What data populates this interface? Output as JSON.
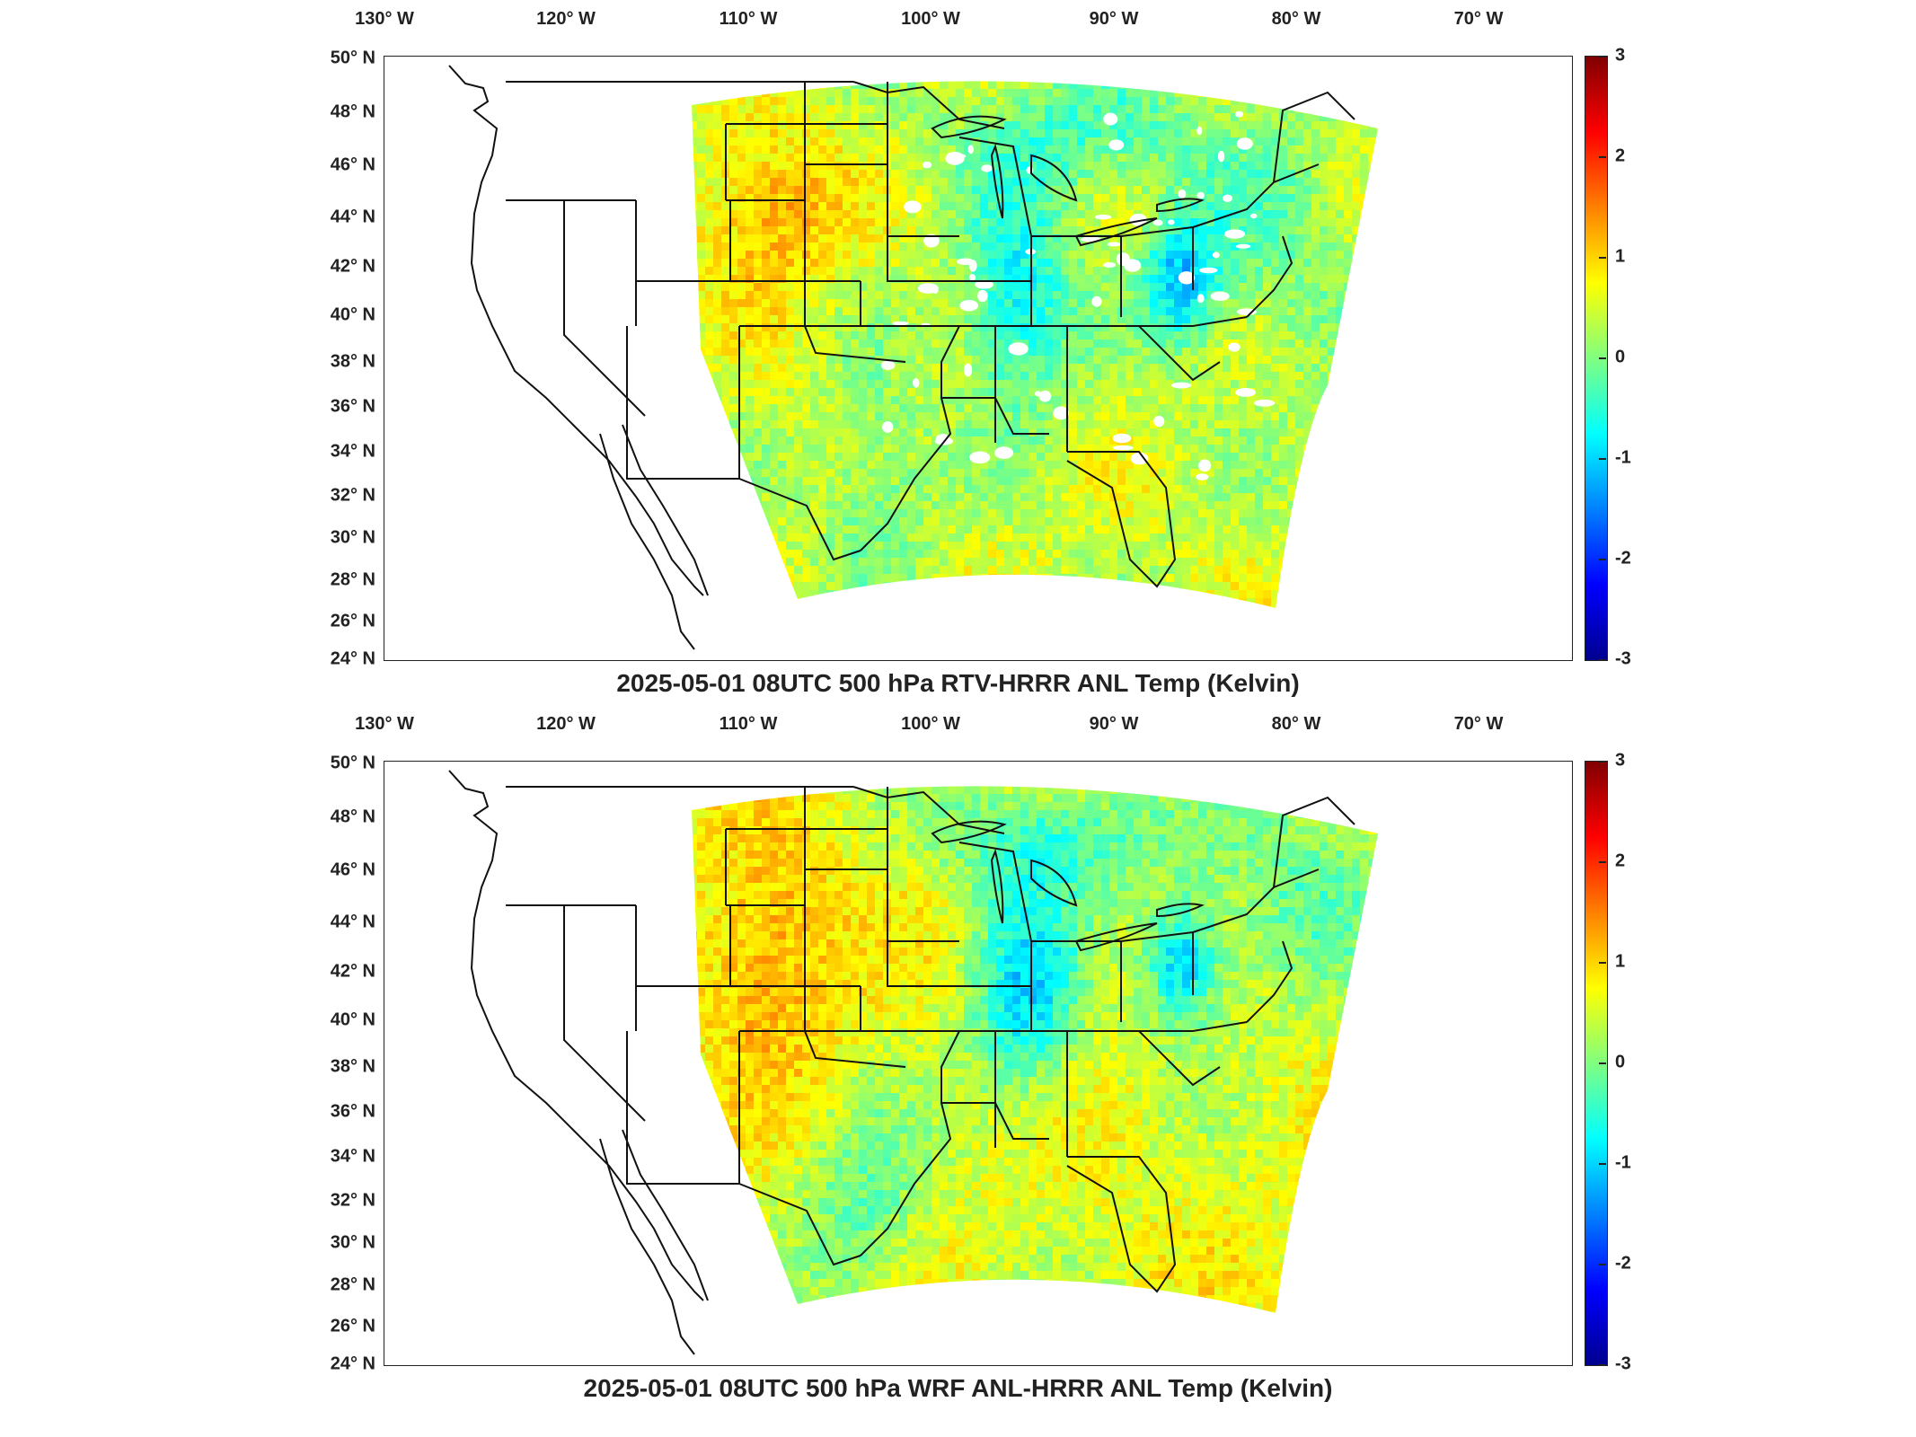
{
  "panels": [
    {
      "title": "2025-05-01 08UTC 500 hPa RTV-HRRR ANL Temp (Kelvin)",
      "variant": "rtv"
    },
    {
      "title": "2025-05-01 08UTC 500 hPa WRF ANL-HRRR ANL Temp (Kelvin)",
      "variant": "wrf"
    }
  ],
  "lon_labels": [
    "130° W",
    "120° W",
    "110° W",
    "100° W",
    "90° W",
    "80° W",
    "70° W"
  ],
  "lat_labels": [
    "50° N",
    "48° N",
    "46° N",
    "44° N",
    "42° N",
    "40° N",
    "38° N",
    "36° N",
    "34° N",
    "32° N",
    "30° N",
    "28° N",
    "26° N",
    "24° N"
  ],
  "colorbar": {
    "ticks": [
      "3",
      "2",
      "1",
      "0",
      "-1",
      "-2",
      "-3"
    ],
    "range": [
      -3,
      3
    ],
    "colormap": "jet"
  },
  "colors": {
    "outline": "#111111",
    "frame": "#222222"
  }
}
